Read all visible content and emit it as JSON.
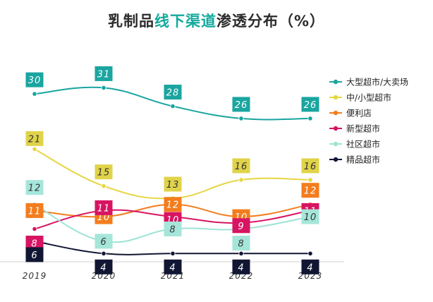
{
  "title": {
    "pre": "乳制品",
    "highlight": "线下渠道",
    "post": "渗透分布（%）"
  },
  "colors": {
    "title_highlight": "#13a99d",
    "axis": "#cfcfcf"
  },
  "chart_data": {
    "type": "line",
    "title": "乳制品线下渠道渗透分布（%）",
    "x": [
      "2019",
      "2020",
      "2021",
      "2022",
      "2023"
    ],
    "ylim": [
      3,
      33
    ],
    "legend_position": "right",
    "series": [
      {
        "name": "大型超市/大卖场",
        "color": "#1aa5a0",
        "label_bg": "#1aa5a0",
        "label_fg": "#ffffff",
        "values": [
          30,
          31,
          28,
          26,
          26
        ]
      },
      {
        "name": "中/小型超市",
        "color": "#e6d640",
        "label_bg": "#e0d34a",
        "label_fg": "#333333",
        "values": [
          21,
          15,
          13,
          16,
          16
        ]
      },
      {
        "name": "便利店",
        "color": "#f37d1d",
        "label_bg": "#f37d1d",
        "label_fg": "#ffffff",
        "values": [
          11,
          10,
          12,
          10,
          12
        ]
      },
      {
        "name": "新型超市",
        "color": "#d71462",
        "label_bg": "#d71462",
        "label_fg": "#ffffff",
        "values": [
          8,
          11,
          10,
          9,
          11
        ]
      },
      {
        "name": "社区超市",
        "color": "#9de3d6",
        "label_bg": "#a6e6da",
        "label_fg": "#333333",
        "values": [
          12,
          6,
          8,
          8,
          10
        ]
      },
      {
        "name": "精品超市",
        "color": "#111633",
        "label_bg": "#111633",
        "label_fg": "#ffffff",
        "values": [
          6,
          4,
          4,
          4,
          4
        ]
      }
    ]
  }
}
